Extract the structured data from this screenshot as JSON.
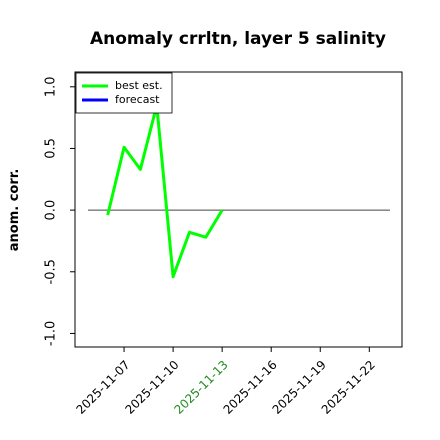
{
  "chart_data": {
    "type": "line",
    "title": "Anomaly crrltn, layer 5 salinity",
    "ylabel": "anom. corr.",
    "x": [
      "2025-11-06",
      "2025-11-07",
      "2025-11-08",
      "2025-11-09",
      "2025-11-10",
      "2025-11-11",
      "2025-11-12",
      "2025-11-13"
    ],
    "series": [
      {
        "name": "best est.",
        "color": "#00ff00",
        "values": [
          -0.04,
          0.51,
          0.33,
          0.85,
          -0.54,
          -0.18,
          -0.22,
          0.0
        ]
      },
      {
        "name": "forecast",
        "color": "#0000ff",
        "values": [
          null,
          null,
          null,
          null,
          null,
          null,
          null,
          null
        ]
      }
    ],
    "xlim": [
      "2025-11-04",
      "2025-11-24"
    ],
    "xticks": [
      "2025-11-07",
      "2025-11-10",
      "2025-11-13",
      "2025-11-16",
      "2025-11-19",
      "2025-11-22"
    ],
    "highlight_xtick": "2025-11-13",
    "highlight_color": "#228b22",
    "ylim": [
      -1.11,
      1.12
    ],
    "yticks": [
      {
        "value": -1,
        "label": "-1.0"
      },
      {
        "value": -0.5,
        "label": "-0.5"
      },
      {
        "value": 0,
        "label": "0.0"
      },
      0.5,
      {
        "value": 1,
        "label": "1.0"
      }
    ],
    "hline": 0,
    "legend": "upper left"
  }
}
